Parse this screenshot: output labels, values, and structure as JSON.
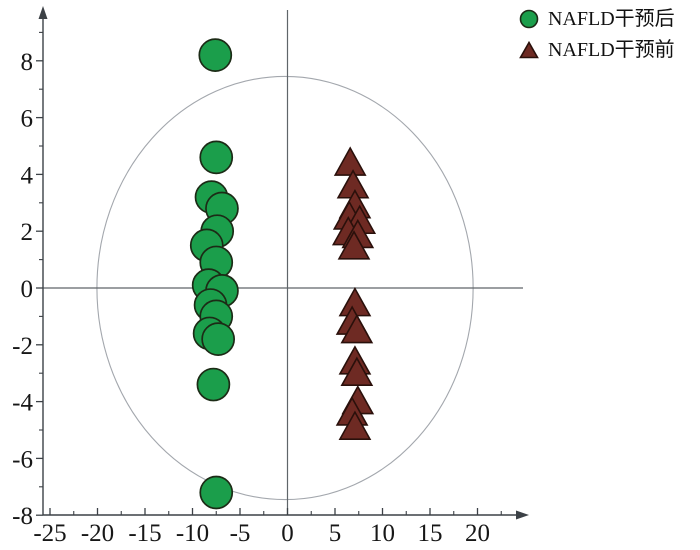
{
  "chart_data": {
    "type": "scatter",
    "title": "",
    "xlabel": "",
    "ylabel": "",
    "grid": false,
    "x_axis": {
      "min": -26,
      "max": 24,
      "major_ticks": [
        -25,
        -20,
        -15,
        -10,
        -5,
        0,
        5,
        10,
        15,
        20
      ],
      "minor_ticks": [
        -22.5,
        -17.5,
        -12.5,
        -7.5,
        -2.5,
        2.5,
        7.5,
        12.5,
        17.5,
        22.5
      ]
    },
    "y_axis": {
      "min": -8,
      "max": 9.6,
      "major_ticks": [
        -8,
        -6,
        -4,
        -2,
        0,
        2,
        4,
        6,
        8
      ],
      "minor_ticks": [
        -7,
        -5,
        -3,
        -1,
        1,
        3,
        5,
        7,
        9
      ]
    },
    "reference_lines": {
      "horizontal_at": 0,
      "vertical_at": 0
    },
    "ellipse": {
      "cx": -0.26,
      "cy": 0.0,
      "rx": 19.8,
      "ry": 7.45
    },
    "legend": {
      "position": "top-right",
      "items": [
        {
          "label": "NAFLD干预后",
          "marker": "circle",
          "color": "#1b9e4b",
          "stroke": "#1c2b16"
        },
        {
          "label": "NAFLD干预前",
          "marker": "triangle-up",
          "color": "#6e2a23",
          "stroke": "#2a100b"
        }
      ]
    },
    "series": [
      {
        "name": "NAFLD干预后",
        "marker": "circle",
        "color": "#1b9e4b",
        "stroke": "#1c2b16",
        "points": [
          [
            -7.6,
            8.2
          ],
          [
            -7.5,
            4.6
          ],
          [
            -8.0,
            3.2
          ],
          [
            -6.9,
            2.8
          ],
          [
            -7.4,
            2.0
          ],
          [
            -8.5,
            1.5
          ],
          [
            -7.5,
            0.9
          ],
          [
            -8.3,
            0.1
          ],
          [
            -6.9,
            -0.1
          ],
          [
            -8.1,
            -0.6
          ],
          [
            -7.5,
            -1.0
          ],
          [
            -8.2,
            -1.6
          ],
          [
            -7.3,
            -1.8
          ],
          [
            -7.8,
            -3.4
          ],
          [
            -7.5,
            -7.2
          ]
        ]
      },
      {
        "name": "NAFLD干预前",
        "marker": "triangle-up",
        "color": "#6e2a23",
        "stroke": "#2a100b",
        "points": [
          [
            6.6,
            4.4
          ],
          [
            6.9,
            3.6
          ],
          [
            7.1,
            2.9
          ],
          [
            6.5,
            2.5
          ],
          [
            7.6,
            2.35
          ],
          [
            6.4,
            1.95
          ],
          [
            7.4,
            1.85
          ],
          [
            7.0,
            1.45
          ],
          [
            7.1,
            -0.55
          ],
          [
            6.8,
            -1.2
          ],
          [
            7.3,
            -1.5
          ],
          [
            7.1,
            -2.6
          ],
          [
            7.3,
            -3.0
          ],
          [
            7.4,
            -4.0
          ],
          [
            6.8,
            -4.4
          ],
          [
            7.1,
            -4.9
          ]
        ]
      }
    ],
    "colors": {
      "axis": "#3c4146",
      "zero_line": "#5f6569",
      "ellipse_stroke": "#a3a7ad",
      "text": "#171717"
    }
  }
}
